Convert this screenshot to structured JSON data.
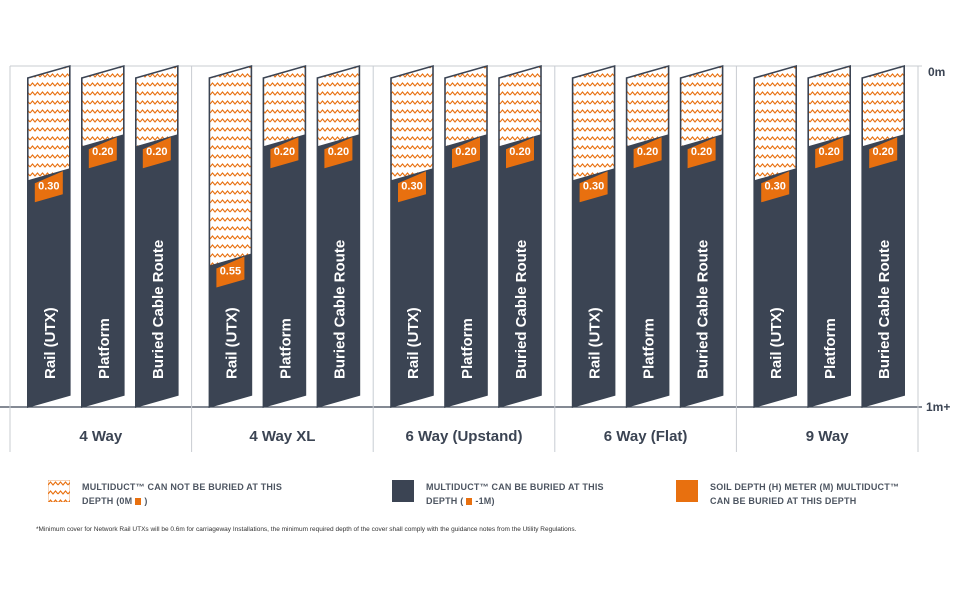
{
  "chart_data": {
    "type": "bar",
    "title": "",
    "depth_axis": {
      "top_label": "0m",
      "bottom_label": "1m+"
    },
    "groups": [
      {
        "name": "4 Way",
        "bars": [
          {
            "label": "Rail (UTX)",
            "depth": 0.3
          },
          {
            "label": "Platform",
            "depth": 0.2
          },
          {
            "label": "Buried Cable Route",
            "depth": 0.2
          }
        ]
      },
      {
        "name": "4 Way XL",
        "bars": [
          {
            "label": "Rail (UTX)",
            "depth": 0.55
          },
          {
            "label": "Platform",
            "depth": 0.2
          },
          {
            "label": "Buried Cable Route",
            "depth": 0.2
          }
        ]
      },
      {
        "name": "6 Way (Upstand)",
        "bars": [
          {
            "label": "Rail (UTX)",
            "depth": 0.3
          },
          {
            "label": "Platform",
            "depth": 0.2
          },
          {
            "label": "Buried Cable Route",
            "depth": 0.2
          }
        ]
      },
      {
        "name": "6 Way (Flat)",
        "bars": [
          {
            "label": "Rail (UTX)",
            "depth": 0.3
          },
          {
            "label": "Platform",
            "depth": 0.2
          },
          {
            "label": "Buried Cable Route",
            "depth": 0.2
          }
        ]
      },
      {
        "name": "9 Way",
        "bars": [
          {
            "label": "Rail (UTX)",
            "depth": 0.3
          },
          {
            "label": "Platform",
            "depth": 0.2
          },
          {
            "label": "Buried Cable Route",
            "depth": 0.2
          }
        ]
      }
    ],
    "value_labels": [
      "0.30",
      "0.20",
      "0.55"
    ],
    "colors": {
      "buriable": "#3b4453",
      "soil_depth": "#e8700f",
      "not_buriable": "#e8700f",
      "gridline": "#c8ccd2"
    }
  },
  "legend": {
    "not_buried_line1": "MULTIDUCT™ CAN NOT BE BURIED AT THIS",
    "not_buried_line2a": "DEPTH (0M",
    "not_buried_line2b": ")",
    "buried_line1": "MULTIDUCT™ CAN BE BURIED AT THIS",
    "buried_line2a": "DEPTH (",
    "buried_line2b": "-1M)",
    "soil_line1": "SOIL DEPTH (H) METER (M) MULTIDUCT™",
    "soil_line2": "CAN BE BURIED AT THIS DEPTH"
  },
  "footnote": "*Minimum cover for Network Rail UTXs will be 0.6m for carriageway Installations, the minimum required depth of the cover shall comply with the guidance notes from the Utility Regulations."
}
